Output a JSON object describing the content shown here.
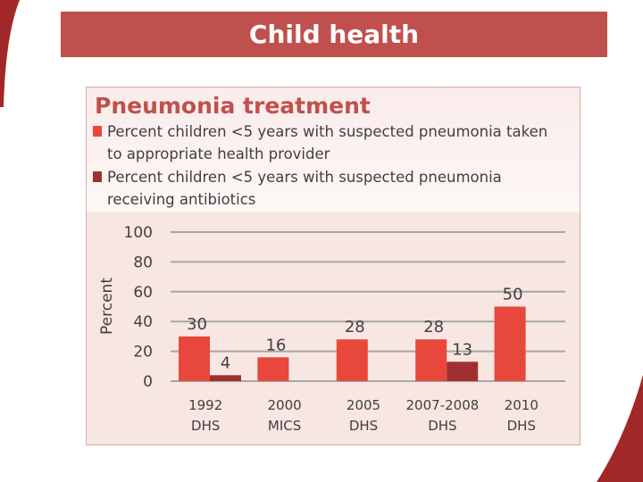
{
  "header": {
    "title": "Child health"
  },
  "colors": {
    "header": "#c0504d",
    "series1": "#e8473b",
    "series2": "#a03030",
    "grid": "#a6a6a6",
    "text": "#404040"
  },
  "chart_data": {
    "type": "bar",
    "title": "Pneumonia treatment",
    "ylabel": "Percent",
    "xlabel": "",
    "ylim": [
      0,
      100
    ],
    "yticks": [
      0,
      20,
      40,
      60,
      80,
      100
    ],
    "categories": [
      [
        "1992",
        "DHS"
      ],
      [
        "2000",
        "MICS"
      ],
      [
        "2005",
        "DHS"
      ],
      [
        "2007-2008",
        "DHS"
      ],
      [
        "2010",
        "DHS"
      ]
    ],
    "series": [
      {
        "name": "Percent children <5 years with suspected pneumonia taken to appropriate health provider",
        "values": [
          30,
          16,
          28,
          28,
          50
        ]
      },
      {
        "name": "Percent children <5 years with suspected pneumonia receiving antibiotics",
        "values": [
          4,
          null,
          null,
          13,
          null
        ]
      }
    ],
    "grid": true,
    "legend_position": "top"
  }
}
